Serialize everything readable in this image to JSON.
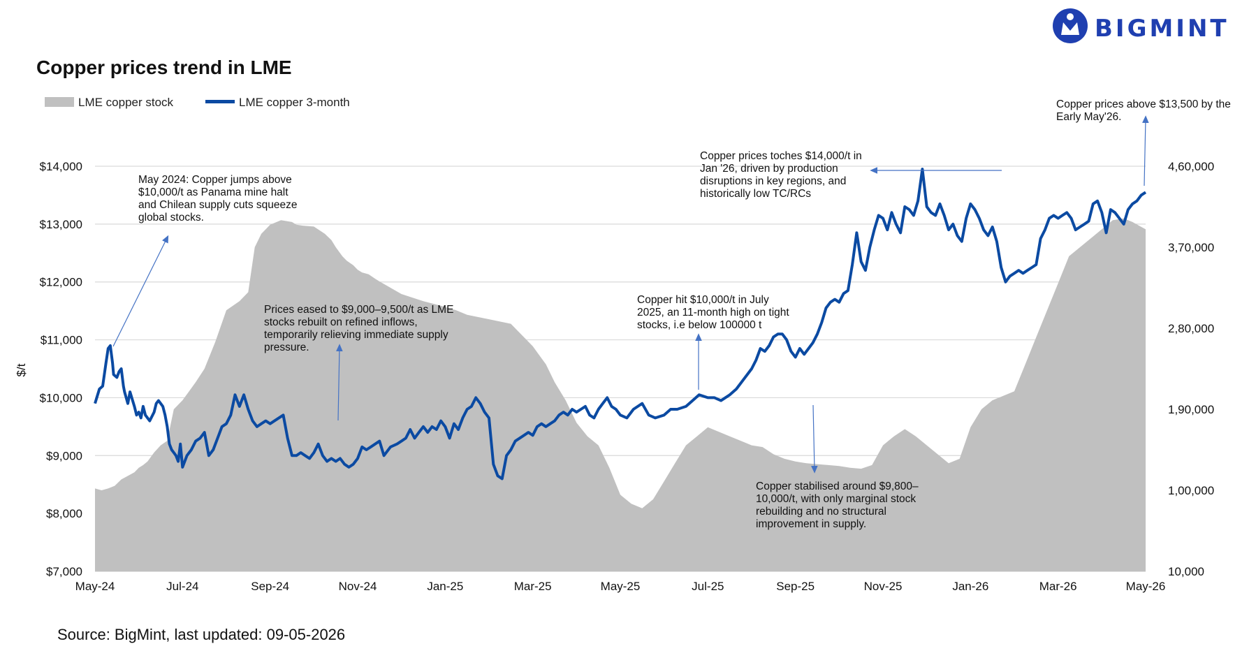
{
  "brand": {
    "name": "BIGMINT",
    "color": "#1f3fb0"
  },
  "source": "Source: BigMint, last updated: 09-05-2026",
  "colors": {
    "price_line": "#0b4aa2",
    "stock_area": "#c0c0c0",
    "grid": "#d9d9d9",
    "arrow": "#4472c4"
  },
  "chart_data": {
    "type": "line",
    "title": "Copper prices trend in LME",
    "ylabel": "$/t",
    "xlabel": "",
    "legend_position": "top-left",
    "grid": true,
    "x_ticks": [
      "May-24",
      "Jul-24",
      "Sep-24",
      "Nov-24",
      "Jan-25",
      "Mar-25",
      "May-25",
      "Jul-25",
      "Sep-25",
      "Nov-25",
      "Jan-26",
      "Mar-26",
      "May-26"
    ],
    "y_left": {
      "ylim": [
        7000,
        14000
      ],
      "ticks": [
        "$7,000",
        "$8,000",
        "$9,000",
        "$10,000",
        "$11,000",
        "$12,000",
        "$13,000",
        "$14,000"
      ]
    },
    "y_right": {
      "ylim": [
        10000,
        460000
      ],
      "ticks": [
        "10,000",
        "1,00,000",
        "1,90,000",
        "2,80,000",
        "3,70,000",
        "4,60,000"
      ]
    },
    "series": [
      {
        "name": "LME copper stock",
        "kind": "area",
        "axis": "right",
        "x": [
          0,
          0.3,
          0.6,
          0.9,
          1.2,
          1.5,
          1.8,
          2.0,
          2.2,
          2.4,
          2.7,
          3.0,
          3.3,
          3.6,
          4.0,
          4.3,
          4.6,
          5.0,
          5.5,
          6.0,
          6.3,
          6.6,
          7.0,
          7.3,
          7.6,
          8.0,
          8.5,
          9.0,
          9.2,
          9.5,
          10.0,
          10.5,
          10.8,
          11.0,
          11.3,
          11.5,
          11.8,
          12.0,
          12.2,
          12.5,
          12.8,
          13.0,
          13.5,
          14.0,
          15.0,
          15.8,
          16.5,
          17.0,
          18.0,
          19.0,
          19.6,
          20.0,
          20.3,
          20.6,
          21.0,
          21.5,
          22.0,
          22.5,
          23.0,
          23.5,
          24.0,
          24.5,
          25.0,
          25.5,
          26.0,
          26.5,
          27.0,
          27.5,
          28.0,
          28.5,
          29.0,
          29.5,
          30.0,
          30.5,
          31.0,
          31.5,
          32.0,
          32.5,
          33.0,
          33.5,
          34.0,
          34.5,
          35.0,
          35.5,
          36.0,
          36.5,
          37.0,
          37.5,
          38.0,
          38.5,
          39.0,
          39.5,
          40.0,
          40.5,
          41.0,
          41.5,
          42.0,
          42.5,
          43.0,
          43.5,
          44.0,
          44.5,
          45.0,
          45.5,
          46.0,
          46.5,
          47.0,
          47.4,
          47.7,
          48.0
        ],
        "values": [
          102000,
          100000,
          102000,
          105000,
          112000,
          116000,
          120000,
          125000,
          128000,
          132000,
          142000,
          150000,
          155000,
          190000,
          200000,
          210000,
          220000,
          235000,
          265000,
          300000,
          305000,
          310000,
          320000,
          370000,
          385000,
          395000,
          400000,
          398000,
          395000,
          394000,
          393000,
          385000,
          378000,
          370000,
          360000,
          355000,
          350000,
          345000,
          342000,
          340000,
          335000,
          332000,
          325000,
          318000,
          310000,
          305000,
          300000,
          295000,
          290000,
          285000,
          270000,
          260000,
          250000,
          240000,
          220000,
          200000,
          175000,
          160000,
          150000,
          125000,
          95000,
          85000,
          80000,
          90000,
          110000,
          130000,
          150000,
          160000,
          170000,
          165000,
          160000,
          155000,
          150000,
          148000,
          140000,
          135000,
          132000,
          130000,
          129000,
          128000,
          127000,
          125000,
          124000,
          128000,
          150000,
          160000,
          168000,
          160000,
          150000,
          140000,
          130000,
          135000,
          170000,
          190000,
          200000,
          205000,
          210000,
          240000,
          270000,
          300000,
          330000,
          360000,
          370000,
          380000,
          390000,
          400000,
          402000,
          398000,
          394000,
          390000
        ]
      },
      {
        "name": "LME copper 3-month",
        "kind": "line",
        "axis": "left",
        "x": [
          0,
          0.2,
          0.35,
          0.5,
          0.6,
          0.7,
          0.8,
          0.85,
          1.0,
          1.1,
          1.2,
          1.3,
          1.35,
          1.5,
          1.6,
          1.8,
          1.9,
          2.0,
          2.1,
          2.2,
          2.3,
          2.5,
          2.7,
          2.8,
          2.9,
          3.0,
          3.1,
          3.2,
          3.3,
          3.4,
          3.5,
          3.6,
          3.7,
          3.8,
          3.9,
          4.0,
          4.2,
          4.4,
          4.6,
          4.8,
          5.0,
          5.2,
          5.4,
          5.6,
          5.8,
          6.0,
          6.2,
          6.4,
          6.6,
          6.8,
          7.0,
          7.2,
          7.4,
          7.6,
          7.8,
          8.0,
          8.2,
          8.4,
          8.6,
          8.8,
          9.0,
          9.2,
          9.4,
          9.6,
          9.8,
          10.0,
          10.2,
          10.4,
          10.6,
          10.8,
          11.0,
          11.2,
          11.4,
          11.6,
          11.8,
          12.0,
          12.2,
          12.4,
          12.6,
          12.8,
          13.0,
          13.2,
          13.5,
          13.8,
          14.0,
          14.2,
          14.4,
          14.6,
          14.8,
          15.0,
          15.2,
          15.4,
          15.6,
          15.8,
          16.0,
          16.2,
          16.4,
          16.6,
          16.8,
          17.0,
          17.2,
          17.4,
          17.6,
          17.8,
          18.0,
          18.2,
          18.4,
          18.6,
          18.8,
          19.0,
          19.2,
          19.4,
          19.6,
          19.8,
          20.0,
          20.2,
          20.4,
          20.6,
          20.8,
          21.0,
          21.2,
          21.4,
          21.6,
          21.8,
          22.0,
          22.2,
          22.4,
          22.6,
          22.8,
          23.0,
          23.2,
          23.4,
          23.6,
          23.8,
          24.0,
          24.3,
          24.6,
          25.0,
          25.3,
          25.6,
          26.0,
          26.3,
          26.6,
          27.0,
          27.3,
          27.6,
          28.0,
          28.3,
          28.6,
          29.0,
          29.3,
          29.6,
          30.0,
          30.2,
          30.4,
          30.6,
          30.8,
          31.0,
          31.2,
          31.4,
          31.6,
          31.8,
          32.0,
          32.2,
          32.4,
          32.6,
          32.8,
          33.0,
          33.2,
          33.4,
          33.6,
          33.8,
          34.0,
          34.2,
          34.4,
          34.6,
          34.8,
          35.0,
          35.2,
          35.4,
          35.6,
          35.8,
          36.0,
          36.2,
          36.4,
          36.6,
          36.8,
          37.0,
          37.2,
          37.4,
          37.6,
          37.8,
          38.0,
          38.2,
          38.4,
          38.6,
          38.8,
          39.0,
          39.2,
          39.4,
          39.6,
          39.8,
          40.0,
          40.2,
          40.4,
          40.6,
          40.8,
          41.0,
          41.2,
          41.4,
          41.6,
          41.8,
          42.0,
          42.2,
          42.4,
          42.6,
          42.8,
          43.0,
          43.2,
          43.4,
          43.6,
          43.8,
          44.0,
          44.2,
          44.4,
          44.6,
          44.8,
          45.0,
          45.2,
          45.4,
          45.6,
          45.8,
          46.0,
          46.2,
          46.4,
          46.6,
          46.8,
          47.0,
          47.2,
          47.4,
          47.6,
          47.8,
          48.0
        ],
        "values": [
          9900,
          10150,
          10200,
          10600,
          10850,
          10900,
          10600,
          10400,
          10350,
          10450,
          10500,
          10200,
          10100,
          9900,
          10100,
          9850,
          9700,
          9750,
          9650,
          9850,
          9700,
          9600,
          9750,
          9900,
          9950,
          9900,
          9850,
          9700,
          9500,
          9200,
          9100,
          9050,
          9000,
          8900,
          9200,
          8800,
          9000,
          9100,
          9250,
          9300,
          9400,
          9000,
          9100,
          9300,
          9500,
          9550,
          9700,
          10050,
          9850,
          10050,
          9800,
          9600,
          9500,
          9550,
          9600,
          9550,
          9600,
          9650,
          9700,
          9300,
          9000,
          9000,
          9050,
          9000,
          8950,
          9050,
          9200,
          9000,
          8900,
          8950,
          8900,
          8950,
          8850,
          8800,
          8850,
          8950,
          9150,
          9100,
          9150,
          9200,
          9250,
          9000,
          9150,
          9200,
          9250,
          9300,
          9450,
          9300,
          9400,
          9500,
          9400,
          9500,
          9450,
          9600,
          9500,
          9300,
          9550,
          9450,
          9650,
          9800,
          9850,
          10000,
          9900,
          9750,
          9650,
          8850,
          8650,
          8600,
          9000,
          9100,
          9250,
          9300,
          9350,
          9400,
          9350,
          9500,
          9550,
          9500,
          9550,
          9600,
          9700,
          9750,
          9700,
          9800,
          9750,
          9800,
          9850,
          9700,
          9650,
          9800,
          9900,
          10000,
          9850,
          9800,
          9700,
          9650,
          9800,
          9900,
          9700,
          9650,
          9700,
          9800,
          9800,
          9850,
          9950,
          10050,
          10000,
          10000,
          9950,
          10050,
          10150,
          10300,
          10500,
          10650,
          10850,
          10800,
          10900,
          11050,
          11100,
          11100,
          11000,
          10800,
          10700,
          10850,
          10750,
          10850,
          10950,
          11100,
          11300,
          11550,
          11650,
          11700,
          11650,
          11800,
          11850,
          12300,
          12850,
          12350,
          12200,
          12600,
          12900,
          13150,
          13100,
          12900,
          13200,
          13000,
          12850,
          13300,
          13250,
          13150,
          13400,
          13950,
          13300,
          13200,
          13150,
          13350,
          13150,
          12900,
          13000,
          12800,
          12700,
          13100,
          13350,
          13250,
          13100,
          12900,
          12800,
          12950,
          12700,
          12250,
          12000,
          12100,
          12150,
          12200,
          12150,
          12200,
          12250,
          12300,
          12750,
          12900,
          13100,
          13150,
          13100,
          13150,
          13200,
          13100,
          12900,
          12950,
          13000,
          13050,
          13350,
          13400,
          13200,
          12850,
          13250,
          13200,
          13100,
          13000,
          13250,
          13350,
          13400,
          13500,
          13550
        ]
      }
    ],
    "annotations": [
      {
        "lines": [
          "May 2024: Copper jumps above",
          "$10,000/t as Panama mine halt",
          "and Chilean supply cuts squeeze",
          "global stocks."
        ]
      },
      {
        "lines": [
          "Prices eased to $9,000–9,500/t as LME",
          "stocks rebuilt on refined inflows,",
          "temporarily relieving immediate supply",
          "pressure."
        ]
      },
      {
        "lines": [
          "Copper hit $10,000/t in July",
          "2025, an 11-month high on tight",
          "stocks, i.e below 100000 t"
        ]
      },
      {
        "lines": [
          "Copper stabilised around $9,800–",
          "10,000/t, with only marginal stock",
          "rebuilding and no structural",
          "improvement in supply."
        ]
      },
      {
        "lines": [
          "Copper prices toches $14,000/t in",
          "Jan '26, driven by production",
          "disruptions in key regions, and",
          "historically low TC/RCs"
        ]
      },
      {
        "lines": [
          "Copper prices above  $13,500 by the",
          "Early May'26."
        ]
      }
    ]
  }
}
